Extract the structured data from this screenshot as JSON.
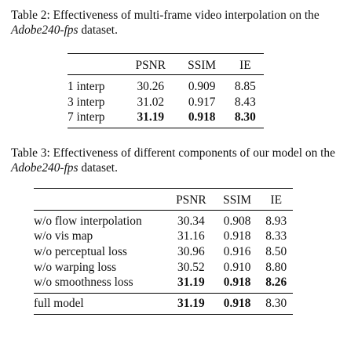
{
  "table2": {
    "caption_prefix": "Table 2: Effectiveness of multi-frame video interpolation on the ",
    "caption_dataset": "Adobe240-fps",
    "caption_suffix": " dataset.",
    "headers": [
      "",
      "PSNR",
      "SSIM",
      "IE"
    ],
    "rows": [
      {
        "label": "1 interp",
        "psnr": "30.26",
        "ssim": "0.909",
        "ie": "8.85"
      },
      {
        "label": "3 interp",
        "psnr": "31.02",
        "ssim": "0.917",
        "ie": "8.43"
      },
      {
        "label": "7 interp",
        "psnr": "31.19",
        "ssim": "0.918",
        "ie": "8.30"
      }
    ]
  },
  "table3": {
    "caption_prefix": "Table 3: Effectiveness of different components of our model on the ",
    "caption_dataset": "Adobe240-fps",
    "caption_suffix": " dataset.",
    "headers": [
      "",
      "PSNR",
      "SSIM",
      "IE"
    ],
    "rows": [
      {
        "label": "w/o flow interpolation",
        "psnr": "30.34",
        "ssim": "0.908",
        "ie": "8.93"
      },
      {
        "label": "w/o vis map",
        "psnr": "31.16",
        "ssim": "0.918",
        "ie": "8.33"
      },
      {
        "label": "w/o perceptual loss",
        "psnr": "30.96",
        "ssim": "0.916",
        "ie": "8.50"
      },
      {
        "label": "w/o warping loss",
        "psnr": "30.52",
        "ssim": "0.910",
        "ie": "8.80"
      },
      {
        "label": "w/o smoothness loss",
        "psnr": "31.19",
        "ssim": "0.918",
        "ie": "8.26"
      }
    ],
    "full_row": {
      "label": "full model",
      "psnr": "31.19",
      "ssim": "0.918",
      "ie": "8.30"
    }
  }
}
